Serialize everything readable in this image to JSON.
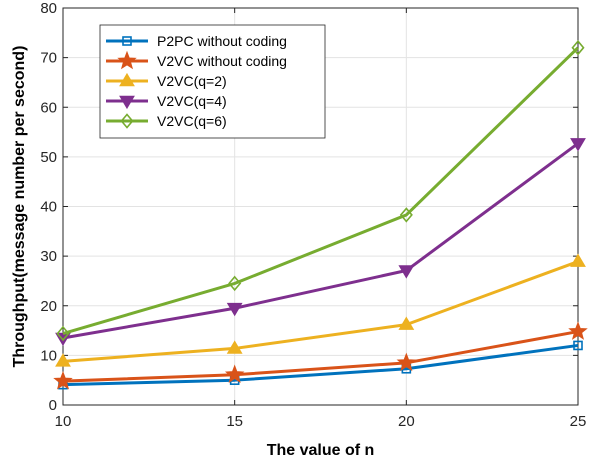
{
  "chart_data": {
    "type": "line",
    "title": "",
    "xlabel": "The value of n",
    "ylabel": "Throughput(message number per second)",
    "x": [
      10,
      15,
      20,
      25
    ],
    "x_ticks": [
      "10",
      "15",
      "20",
      "25"
    ],
    "y_ticks": [
      "0",
      "10",
      "20",
      "30",
      "40",
      "50",
      "60",
      "70",
      "80"
    ],
    "xlim": [
      10,
      25
    ],
    "ylim": [
      0,
      80
    ],
    "grid": true,
    "legend_position": "top-left",
    "series": [
      {
        "name": "P2PC without coding",
        "values": [
          4.1,
          5.0,
          7.3,
          12.0
        ],
        "color": "#0072BD",
        "marker": "square"
      },
      {
        "name": "V2VC without coding",
        "values": [
          4.8,
          6.1,
          8.5,
          14.8
        ],
        "color": "#D95319",
        "marker": "star"
      },
      {
        "name": "V2VC(q=2)",
        "values": [
          8.8,
          11.4,
          16.2,
          28.9
        ],
        "color": "#EDB120",
        "marker": "triangle-up"
      },
      {
        "name": "V2VC(q=4)",
        "values": [
          13.5,
          19.5,
          27.1,
          52.7
        ],
        "color": "#7E2F8E",
        "marker": "triangle-down"
      },
      {
        "name": "V2VC(q=6)",
        "values": [
          14.4,
          24.5,
          38.3,
          72.0
        ],
        "color": "#77AC30",
        "marker": "diamond"
      }
    ]
  }
}
